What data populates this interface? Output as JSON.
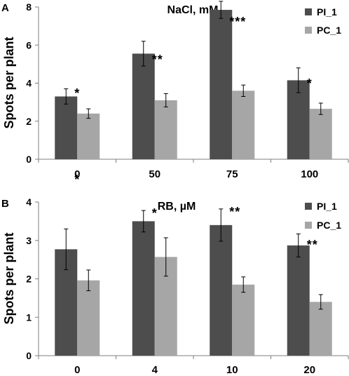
{
  "chart_data": [
    {
      "type": "bar",
      "panel_label": "A",
      "title": "NaCl, mM",
      "ylabel": "Spots per plant",
      "xlabel": "",
      "categories": [
        "0",
        "50",
        "75",
        "100"
      ],
      "ylim": [
        0,
        8
      ],
      "yticks": [
        "0",
        "2",
        "4",
        "6",
        "8"
      ],
      "grid": false,
      "legend_position": "top-right",
      "series": [
        {
          "name": "PI_1",
          "color": "#4d4d4d",
          "values": [
            3.3,
            5.55,
            7.85,
            4.15
          ],
          "errors": [
            0.4,
            0.65,
            0.45,
            0.65
          ]
        },
        {
          "name": "PC_1",
          "color": "#a6a6a6",
          "values": [
            2.4,
            3.1,
            3.6,
            2.65
          ],
          "errors": [
            0.25,
            0.35,
            0.3,
            0.3
          ]
        }
      ],
      "annotations": [
        "*",
        "**",
        "***",
        "*"
      ]
    },
    {
      "type": "bar",
      "panel_label": "B",
      "title": "RB, µM",
      "ylabel": "Spots per plant",
      "xlabel": "",
      "categories": [
        "0",
        "4",
        "10",
        "20"
      ],
      "ylim": [
        0,
        4
      ],
      "yticks": [
        "0",
        "1",
        "2",
        "3",
        "4"
      ],
      "grid": false,
      "legend_position": "top-right",
      "series": [
        {
          "name": "PI_1",
          "color": "#4d4d4d",
          "values": [
            2.77,
            3.5,
            3.4,
            2.87
          ],
          "errors": [
            0.53,
            0.28,
            0.42,
            0.3
          ]
        },
        {
          "name": "PC_1",
          "color": "#a6a6a6",
          "values": [
            1.96,
            2.57,
            1.85,
            1.4
          ],
          "errors": [
            0.27,
            0.5,
            0.2,
            0.19
          ]
        }
      ],
      "annotations": [
        "*",
        "*",
        "**",
        "**"
      ]
    }
  ]
}
